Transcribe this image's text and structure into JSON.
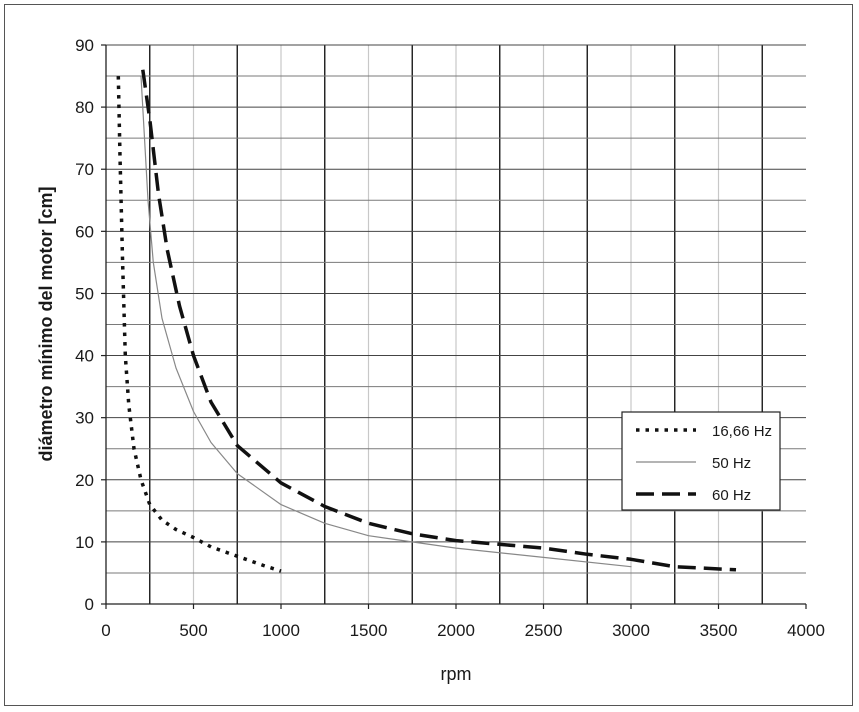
{
  "chart_data": {
    "type": "line",
    "title": "",
    "xlabel": "rpm",
    "ylabel": "diámetro mínimo del motor [cm]",
    "xlim": [
      0,
      4000
    ],
    "ylim": [
      0,
      90
    ],
    "x_ticks": [
      "0",
      "500",
      "1000",
      "1500",
      "2000",
      "2500",
      "3000",
      "3500",
      "4000"
    ],
    "y_ticks": [
      "0",
      "10",
      "20",
      "30",
      "40",
      "50",
      "60",
      "70",
      "80",
      "90"
    ],
    "grid": true,
    "legend_position": "right",
    "series": [
      {
        "name": "16,66 Hz",
        "style": "dotted",
        "color": "#111111",
        "points": [
          [
            70,
            85
          ],
          [
            80,
            72
          ],
          [
            95,
            55
          ],
          [
            110,
            40
          ],
          [
            130,
            32
          ],
          [
            160,
            25
          ],
          [
            200,
            20
          ],
          [
            250,
            16
          ],
          [
            320,
            13.5
          ],
          [
            400,
            12
          ],
          [
            500,
            10.7
          ],
          [
            600,
            9.2
          ],
          [
            700,
            8.2
          ],
          [
            800,
            7.2
          ],
          [
            900,
            6.2
          ],
          [
            1000,
            5.3
          ]
        ]
      },
      {
        "name": "50 Hz",
        "style": "solid-thin",
        "color": "#888888",
        "points": [
          [
            200,
            85
          ],
          [
            220,
            75
          ],
          [
            240,
            65
          ],
          [
            270,
            55
          ],
          [
            320,
            46
          ],
          [
            400,
            38
          ],
          [
            500,
            31
          ],
          [
            600,
            26
          ],
          [
            750,
            21
          ],
          [
            1000,
            16
          ],
          [
            1250,
            13
          ],
          [
            1500,
            11
          ],
          [
            2000,
            9
          ],
          [
            2500,
            7.5
          ],
          [
            3000,
            6
          ]
        ]
      },
      {
        "name": "60 Hz",
        "style": "dashed",
        "color": "#111111",
        "points": [
          [
            210,
            86
          ],
          [
            250,
            78
          ],
          [
            300,
            66
          ],
          [
            350,
            57
          ],
          [
            420,
            48
          ],
          [
            500,
            40
          ],
          [
            600,
            32.5
          ],
          [
            750,
            25.5
          ],
          [
            1000,
            19.5
          ],
          [
            1250,
            15.7
          ],
          [
            1500,
            13
          ],
          [
            1750,
            11.3
          ],
          [
            2000,
            10.2
          ],
          [
            2500,
            9
          ],
          [
            2750,
            8
          ],
          [
            3000,
            7.2
          ],
          [
            3250,
            6
          ],
          [
            3600,
            5.5
          ]
        ]
      }
    ]
  }
}
